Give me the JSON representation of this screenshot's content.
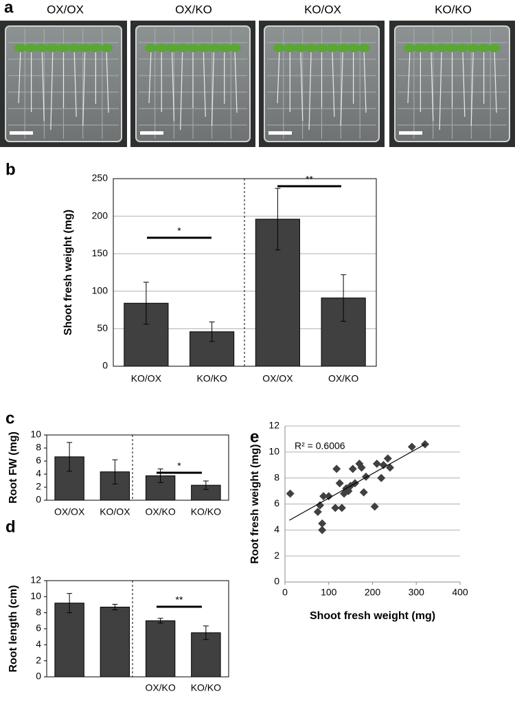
{
  "panel_a": {
    "panel_label": "a",
    "photo_labels": [
      "OX/OX",
      "OX/KO",
      "KO/OX",
      "KO/KO"
    ]
  },
  "chart_data": [
    {
      "type": "bar",
      "panel_label": "b",
      "y_label": "Shoot fresh weight (mg)",
      "categories": [
        "KO/OX",
        "KO/KO",
        "OX/OX",
        "OX/KO"
      ],
      "values": [
        84,
        46,
        196,
        91
      ],
      "errors": [
        28,
        13,
        41,
        31
      ],
      "color": "#404040",
      "ylim": [
        0,
        250
      ],
      "yticks": [
        0,
        50,
        100,
        150,
        200,
        250
      ],
      "grid": true,
      "annotations": [
        "*",
        "**"
      ]
    },
    {
      "type": "bar",
      "panel_label": "c",
      "y_label": "Root FW (mg)",
      "categories": [
        "OX/OX",
        "KO/OX",
        "OX/KO",
        "KO/KO"
      ],
      "values": [
        6.65,
        4.35,
        3.75,
        2.3
      ],
      "errors": [
        2.2,
        1.85,
        1.05,
        0.65
      ],
      "color": "#404040",
      "ylim": [
        0,
        10
      ],
      "yticks": [
        0,
        2,
        4,
        6,
        8,
        10
      ],
      "grid": false,
      "annotations": [
        "*"
      ]
    },
    {
      "type": "bar",
      "panel_label": "d",
      "y_label": "Root length (cm)",
      "categories": [
        null,
        null,
        "OX/KO",
        "KO/KO"
      ],
      "values": [
        9.2,
        8.7,
        7.0,
        5.5
      ],
      "errors": [
        1.2,
        0.35,
        0.3,
        0.85
      ],
      "color": "#404040",
      "ylim": [
        0,
        12
      ],
      "yticks": [
        0,
        2,
        4,
        6,
        8,
        10,
        12
      ],
      "grid": false,
      "annotations": [
        "**"
      ]
    },
    {
      "type": "scatter",
      "panel_label": "e",
      "x_label": "Shoot fresh weight (mg)",
      "y_label": "Root fresh weight (mg)",
      "x": [
        12,
        75,
        80,
        85,
        85,
        88,
        100,
        115,
        118,
        125,
        130,
        135,
        140,
        145,
        150,
        155,
        160,
        170,
        175,
        180,
        185,
        205,
        210,
        220,
        225,
        235,
        240,
        290,
        320
      ],
      "y": [
        6.8,
        5.4,
        5.9,
        4.5,
        4.0,
        6.6,
        6.6,
        5.7,
        8.7,
        7.6,
        5.7,
        6.8,
        7.2,
        7.0,
        7.4,
        8.7,
        7.6,
        9.1,
        8.8,
        6.9,
        8.1,
        5.8,
        9.1,
        8.0,
        9.0,
        9.5,
        8.8,
        10.4,
        10.6
      ],
      "color": "#404040",
      "trendline": {
        "x": [
          10,
          320
        ],
        "y": [
          4.75,
          10.6
        ]
      },
      "xlim": [
        0,
        400
      ],
      "xticks": [
        0,
        100,
        200,
        300,
        400
      ],
      "ylim": [
        0,
        12
      ],
      "yticks": [
        0,
        2,
        4,
        6,
        8,
        10,
        12
      ],
      "grid": true,
      "annotations": [
        "R² = 0.6006"
      ]
    }
  ]
}
